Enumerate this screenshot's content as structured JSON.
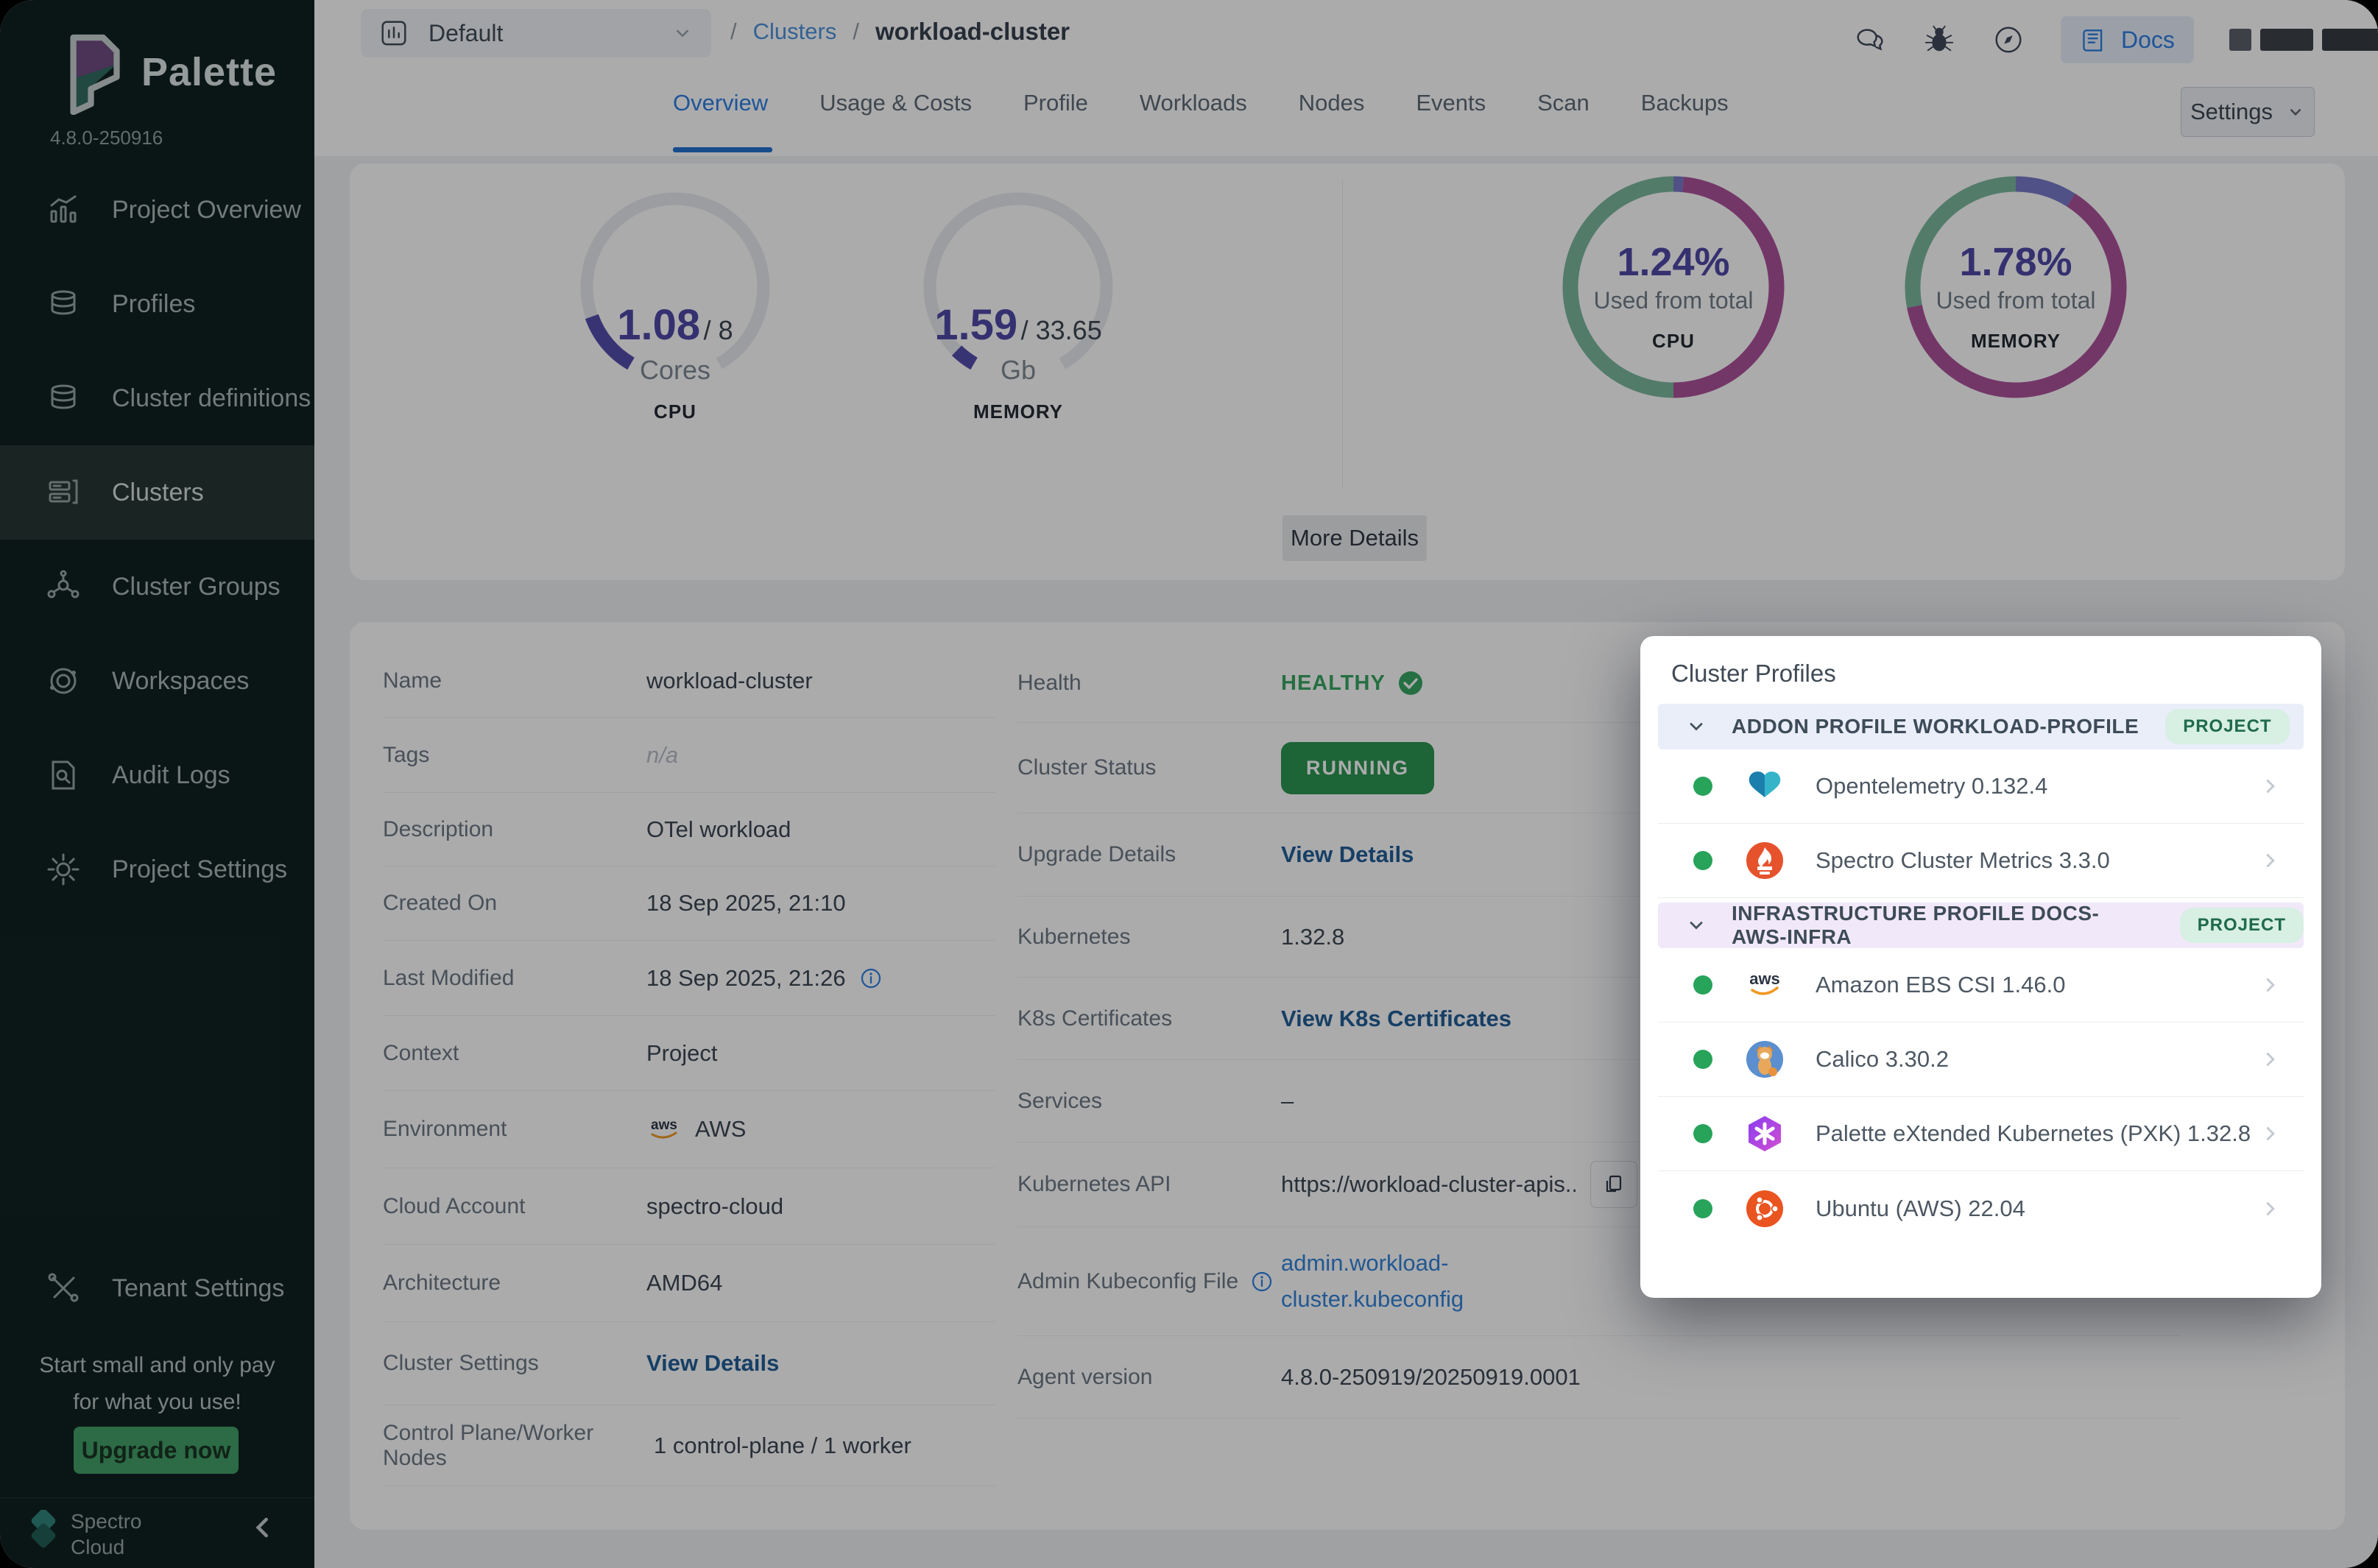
{
  "app": {
    "logo_text": "Palette",
    "version": "4.8.0-250916"
  },
  "sidebar": {
    "items": [
      {
        "label": "Project Overview",
        "icon": "bar-chart-icon",
        "active": false
      },
      {
        "label": "Profiles",
        "icon": "stack-icon",
        "active": false
      },
      {
        "label": "Cluster definitions",
        "icon": "stack-icon",
        "active": false
      },
      {
        "label": "Clusters",
        "icon": "servers-icon",
        "active": true
      },
      {
        "label": "Cluster Groups",
        "icon": "network-icon",
        "active": false
      },
      {
        "label": "Workspaces",
        "icon": "orbit-icon",
        "active": false
      },
      {
        "label": "Audit Logs",
        "icon": "audit-icon",
        "active": false
      },
      {
        "label": "Project Settings",
        "icon": "gear-icon",
        "active": false
      }
    ],
    "tenant_settings_label": "Tenant Settings",
    "promo": {
      "line1": "Start small and only pay",
      "line2": "for what you use!",
      "button": "Upgrade now"
    },
    "brand": {
      "line1": "Spectro",
      "line2": "Cloud"
    }
  },
  "topbar": {
    "project_selector": {
      "value": "Default"
    },
    "breadcrumb": {
      "separator": "/",
      "link": "Clusters",
      "current": "workload-cluster"
    },
    "docs_label": "Docs",
    "settings_label": "Settings"
  },
  "tabs": [
    {
      "label": "Overview",
      "active": true
    },
    {
      "label": "Usage & Costs",
      "active": false
    },
    {
      "label": "Profile",
      "active": false
    },
    {
      "label": "Workloads",
      "active": false
    },
    {
      "label": "Nodes",
      "active": false
    },
    {
      "label": "Events",
      "active": false
    },
    {
      "label": "Scan",
      "active": false
    },
    {
      "label": "Backups",
      "active": false
    }
  ],
  "metrics": {
    "cpu_gauge": {
      "used": "1.08",
      "separator": "/",
      "total": "8",
      "unit": "Cores",
      "caption": "CPU",
      "percent": 13.5
    },
    "memory_gauge": {
      "used": "1.59",
      "separator": "/",
      "total": "33.65",
      "unit": "Gb",
      "caption": "MEMORY",
      "percent": 4.7
    },
    "cpu_donut": {
      "value": "1.24%",
      "subtitle": "Used from total",
      "caption": "CPU",
      "segments": [
        {
          "color": "purple",
          "percent": 1.5
        },
        {
          "color": "magenta",
          "percent": 48.5
        },
        {
          "color": "green",
          "percent": 50
        }
      ]
    },
    "memory_donut": {
      "value": "1.78%",
      "subtitle": "Used from total",
      "caption": "MEMORY",
      "segments": [
        {
          "color": "purple",
          "percent": 9
        },
        {
          "color": "magenta",
          "percent": 63
        },
        {
          "color": "green",
          "percent": 28
        }
      ]
    },
    "more_details_button": "More Details"
  },
  "details": {
    "left": [
      {
        "label": "Name",
        "value": "workload-cluster"
      },
      {
        "label": "Tags",
        "value": "n/a"
      },
      {
        "label": "Description",
        "value": "OTel workload"
      },
      {
        "label": "Created On",
        "value": "18 Sep 2025, 21:10"
      },
      {
        "label": "Last Modified",
        "value": "18 Sep 2025, 21:26"
      },
      {
        "label": "Context",
        "value": "Project"
      },
      {
        "label": "Environment",
        "value": "AWS"
      },
      {
        "label": "Cloud Account",
        "value": "spectro-cloud"
      },
      {
        "label": "Architecture",
        "value": "AMD64"
      },
      {
        "label": "Cluster Settings",
        "value": "View Details"
      },
      {
        "label": "Control Plane/Worker Nodes",
        "value": "1 control-plane / 1 worker"
      }
    ],
    "right": [
      {
        "label": "Health",
        "value": "HEALTHY"
      },
      {
        "label": "Cluster Status",
        "value": "RUNNING"
      },
      {
        "label": "Upgrade Details",
        "value": "View Details"
      },
      {
        "label": "Kubernetes",
        "value": "1.32.8"
      },
      {
        "label": "K8s Certificates",
        "value": "View K8s Certificates"
      },
      {
        "label": "Services",
        "value": "–"
      },
      {
        "label": "Kubernetes API",
        "value": "https://workload-cluster-apis..."
      },
      {
        "label": "Admin Kubeconfig File",
        "value": "admin.workload-cluster.kubeconfig"
      },
      {
        "label": "Agent version",
        "value": "4.8.0-250919/20250919.0001"
      }
    ]
  },
  "popup": {
    "title": "Cluster Profiles",
    "sections": [
      {
        "header": "ADDON PROFILE WORKLOAD-PROFILE",
        "badge": "PROJECT",
        "theme": "blue",
        "items": [
          {
            "name": "Opentelemetry 0.132.4",
            "icon": "opentelemetry-icon"
          },
          {
            "name": "Spectro Cluster Metrics 3.3.0",
            "icon": "prometheus-icon"
          }
        ]
      },
      {
        "header": "INFRASTRUCTURE PROFILE DOCS-AWS-INFRA",
        "badge": "PROJECT",
        "theme": "purple",
        "items": [
          {
            "name": "Amazon EBS CSI 1.46.0",
            "icon": "aws-icon"
          },
          {
            "name": "Calico 3.30.2",
            "icon": "calico-icon"
          },
          {
            "name": "Palette eXtended Kubernetes (PXK) 1.32.8",
            "icon": "pxk-icon"
          },
          {
            "name": "Ubuntu (AWS) 22.04",
            "icon": "ubuntu-icon"
          }
        ]
      }
    ]
  },
  "colors": {
    "accent_blue": "#2a7de1",
    "link_navy": "#1f5c93",
    "link_blue": "#2f81d6",
    "running_green": "#28934c",
    "healthy_green": "#35a45e",
    "gauge_purple": "#514bab",
    "donut_green": "#7ab79b",
    "donut_magenta": "#aa5097",
    "donut_purple": "#7577c5",
    "track": "#e8eaed"
  }
}
